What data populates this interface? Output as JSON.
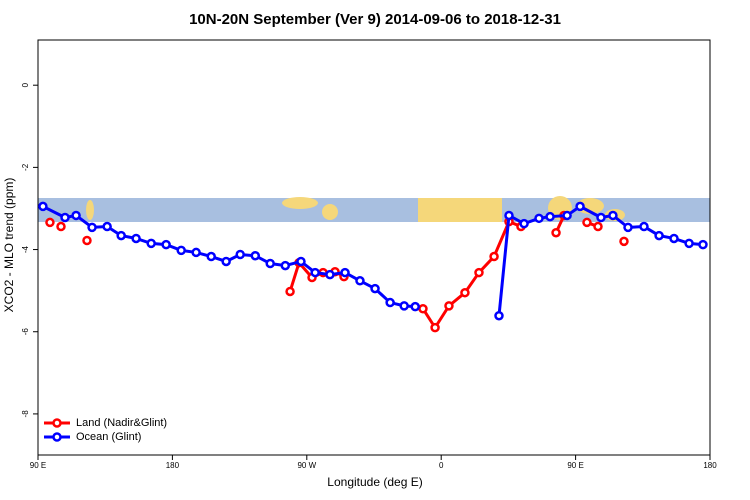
{
  "chart_data": {
    "type": "line",
    "title": "10N-20N September (Ver 9)   2014-09-06 to 2018-12-31",
    "x_label": "Longitude (deg E)",
    "y_label": "XCO2 - MLO trend (ppm)",
    "xlim": [
      90,
      540
    ],
    "ylim": [
      -9,
      1.1
    ],
    "xticks": [
      {
        "value": 90,
        "label": "90 E"
      },
      180,
      {
        "value": 270,
        "label": "90 W"
      },
      {
        "value": 360,
        "label": "0"
      },
      {
        "value": 450,
        "label": "90 E"
      },
      {
        "value": 540,
        "label": "180"
      }
    ],
    "yticks": [
      -8,
      -6,
      -4,
      -2,
      0
    ],
    "legend": "bottom-left",
    "series": [
      {
        "name": "Land (Nadir&Glint)",
        "color": "#ff0000",
        "x": [
          98,
          null,
          105.4,
          null,
          122.8,
          null,
          258.8,
          264.8,
          273.5,
          280.9,
          288.9,
          294.9,
          null,
          347.8,
          355.9,
          365.2,
          375.9,
          385.3,
          395.4,
          405.4,
          413.4,
          null,
          436.9,
          442.2,
          null,
          457.6,
          465,
          null,
          482.4
        ],
        "values": [
          -3.34,
          null,
          -3.44,
          null,
          -3.78,
          null,
          -5.02,
          -4.32,
          -4.68,
          -4.56,
          -4.54,
          -4.66,
          null,
          -5.44,
          -5.9,
          -5.37,
          -5.05,
          -4.56,
          -4.17,
          -3.32,
          -3.44,
          null,
          -3.59,
          -3.17,
          null,
          -3.34,
          -3.44,
          null,
          -3.8
        ]
      },
      {
        "name": "Ocean (Glint)",
        "color": "#0000ff",
        "x": [
          93.3,
          108.1,
          115.5,
          126.2,
          136.3,
          145.7,
          155.7,
          165.8,
          175.8,
          185.9,
          195.9,
          206,
          216,
          225.4,
          235.5,
          245.5,
          255.6,
          266.1,
          275.6,
          285.5,
          295.6,
          305.6,
          315.7,
          325.8,
          335.2,
          342.6,
          null,
          398.7,
          405.4,
          415.5,
          425.5,
          432.9,
          444.3,
          453,
          467,
          475,
          485.1,
          495.8,
          505.9,
          515.9,
          526,
          535.3
        ],
        "values": [
          -2.95,
          -3.22,
          -3.17,
          -3.46,
          -3.44,
          -3.66,
          -3.73,
          -3.85,
          -3.88,
          -4.02,
          -4.07,
          -4.17,
          -4.29,
          -4.12,
          -4.15,
          -4.34,
          -4.39,
          -4.29,
          -4.56,
          -4.61,
          -4.56,
          -4.76,
          -4.95,
          -5.29,
          -5.37,
          -5.39,
          null,
          -5.61,
          -3.17,
          -3.37,
          -3.24,
          -3.2,
          -3.17,
          -2.95,
          -3.22,
          -3.17,
          -3.46,
          -3.44,
          -3.66,
          -3.73,
          -3.85,
          -3.88
        ]
      }
    ]
  }
}
